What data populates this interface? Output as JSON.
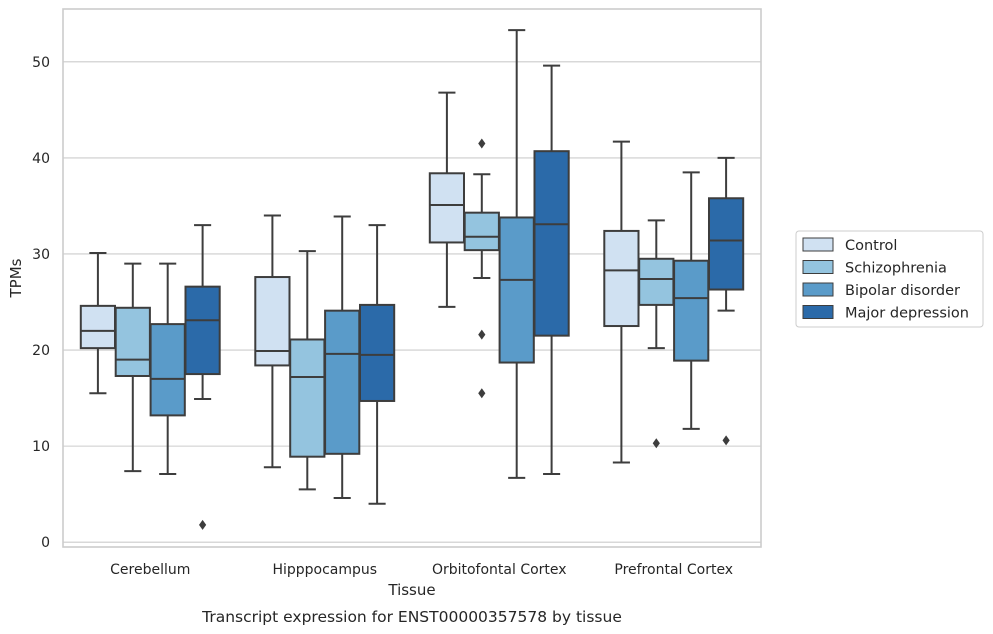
{
  "chart_data": {
    "type": "box",
    "xlabel": "Tissue",
    "ylabel": "TPMs",
    "caption": "Transcript expression for ENST00000357578 by tissue",
    "ylim": [
      -0.5,
      55.5
    ],
    "yticks": [
      0,
      10,
      20,
      30,
      40,
      50
    ],
    "grid": true,
    "legend_position": "right",
    "categories": [
      "Cerebellum",
      "Hipppocampus",
      "Orbitofontal Cortex",
      "Prefrontal Cortex"
    ],
    "series": [
      {
        "name": "Control",
        "color": "#d0e1f2",
        "boxes": [
          {
            "whislo": 15.5,
            "q1": 20.2,
            "med": 22.0,
            "q3": 24.6,
            "whishi": 30.1,
            "fliers": []
          },
          {
            "whislo": 7.8,
            "q1": 18.4,
            "med": 19.9,
            "q3": 27.6,
            "whishi": 34.0,
            "fliers": []
          },
          {
            "whislo": 24.5,
            "q1": 31.2,
            "med": 35.1,
            "q3": 38.4,
            "whishi": 46.8,
            "fliers": []
          },
          {
            "whislo": 8.3,
            "q1": 22.5,
            "med": 28.3,
            "q3": 32.4,
            "whishi": 41.7,
            "fliers": []
          }
        ]
      },
      {
        "name": "Schizophrenia",
        "color": "#94c4df",
        "boxes": [
          {
            "whislo": 7.4,
            "q1": 17.3,
            "med": 19.0,
            "q3": 24.4,
            "whishi": 29.0,
            "fliers": []
          },
          {
            "whislo": 5.5,
            "q1": 8.9,
            "med": 17.2,
            "q3": 21.1,
            "whishi": 30.3,
            "fliers": []
          },
          {
            "whislo": 27.5,
            "q1": 30.4,
            "med": 31.8,
            "q3": 34.3,
            "whishi": 38.3,
            "fliers": [
              41.5,
              21.6,
              15.5
            ]
          },
          {
            "whislo": 20.2,
            "q1": 24.7,
            "med": 27.4,
            "q3": 29.5,
            "whishi": 33.5,
            "fliers": [
              10.3
            ]
          }
        ]
      },
      {
        "name": "Bipolar disorder",
        "color": "#5a9bc9",
        "boxes": [
          {
            "whislo": 7.1,
            "q1": 13.2,
            "med": 17.0,
            "q3": 22.7,
            "whishi": 29.0,
            "fliers": []
          },
          {
            "whislo": 4.6,
            "q1": 9.2,
            "med": 19.6,
            "q3": 24.1,
            "whishi": 33.9,
            "fliers": []
          },
          {
            "whislo": 6.7,
            "q1": 18.7,
            "med": 27.3,
            "q3": 33.8,
            "whishi": 53.3,
            "fliers": []
          },
          {
            "whislo": 11.8,
            "q1": 18.9,
            "med": 25.4,
            "q3": 29.3,
            "whishi": 38.5,
            "fliers": []
          }
        ]
      },
      {
        "name": "Major depression",
        "color": "#2b6aa9",
        "boxes": [
          {
            "whislo": 14.9,
            "q1": 17.5,
            "med": 23.1,
            "q3": 26.6,
            "whishi": 33.0,
            "fliers": [
              1.8
            ]
          },
          {
            "whislo": 4.0,
            "q1": 14.7,
            "med": 19.5,
            "q3": 24.7,
            "whishi": 33.0,
            "fliers": []
          },
          {
            "whislo": 7.1,
            "q1": 21.5,
            "med": 33.1,
            "q3": 40.7,
            "whishi": 49.6,
            "fliers": []
          },
          {
            "whislo": 24.1,
            "q1": 26.3,
            "med": 31.4,
            "q3": 35.8,
            "whishi": 40.0,
            "fliers": [
              10.6
            ]
          }
        ]
      }
    ]
  }
}
